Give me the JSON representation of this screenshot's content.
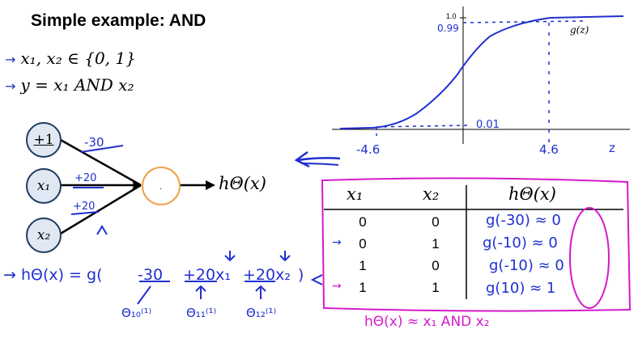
{
  "title": "Simple example: AND",
  "bullets": [
    "x₁, x₂ ∈ {0, 1}",
    "y = x₁ AND x₂"
  ],
  "network": {
    "bias": "+1",
    "input1": "x₁",
    "input2": "x₂",
    "output": "hΘ(x)",
    "weight_bias": "-30",
    "weight_x1": "+20",
    "weight_x2": "+20"
  },
  "sigmoid_plot": {
    "ylabel_top": "1.0",
    "annot_high": "0.99",
    "annot_low": "0.01",
    "curve_label": "g(z)",
    "xtick_neg": "-4.6",
    "xtick_pos": "4.6",
    "xaxis_label": "z"
  },
  "equation": {
    "lhs": "hΘ(x) = g(",
    "term1": "-30",
    "term2": "+20x₁",
    "term3": "+20x₂",
    "close": ")",
    "theta10": "Θ₁₀⁽¹⁾",
    "theta11": "Θ₁₁⁽¹⁾",
    "theta12": "Θ₁₂⁽¹⁾"
  },
  "table": {
    "headers": [
      "x₁",
      "x₂",
      "hΘ(x)"
    ],
    "rows": [
      {
        "x1": "0",
        "x2": "0",
        "h": "g(-30) ≈ 0"
      },
      {
        "x1": "0",
        "x2": "1",
        "h": "g(-10) ≈ 0"
      },
      {
        "x1": "1",
        "x2": "0",
        "h": "g(-10) ≈ 0"
      },
      {
        "x1": "1",
        "x2": "1",
        "h": "g(10) ≈ 1"
      }
    ],
    "caption": "hΘ(x) ≈ x₁ AND x₂"
  }
}
